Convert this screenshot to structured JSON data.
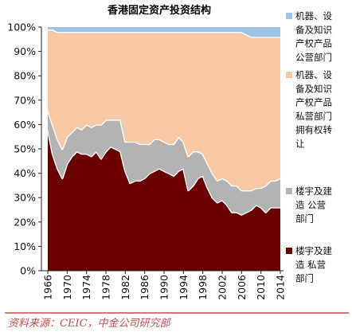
{
  "chart_data": {
    "type": "area",
    "stacked": true,
    "title": "香港固定资产投资结构",
    "x": [
      1966,
      1967,
      1968,
      1969,
      1970,
      1971,
      1972,
      1973,
      1974,
      1975,
      1976,
      1977,
      1978,
      1979,
      1980,
      1981,
      1982,
      1983,
      1984,
      1985,
      1986,
      1987,
      1988,
      1989,
      1990,
      1991,
      1992,
      1993,
      1994,
      1995,
      1996,
      1997,
      1998,
      1999,
      2000,
      2001,
      2002,
      2003,
      2004,
      2005,
      2006,
      2007,
      2008,
      2009,
      2010,
      2011,
      2012,
      2013,
      2014
    ],
    "x_tick_labels": [
      "1966",
      "1970",
      "1974",
      "1978",
      "1982",
      "1986",
      "1990",
      "1994",
      "1998",
      "2002",
      "2006",
      "2010",
      "2014"
    ],
    "y_tick_labels": [
      "0%",
      "10%",
      "20%",
      "30%",
      "40%",
      "50%",
      "60%",
      "70%",
      "80%",
      "90%",
      "100%"
    ],
    "ylim": [
      0,
      100
    ],
    "series": [
      {
        "name": "楼宇及建造 私营部门",
        "color": "#6b0000",
        "values": [
          58,
          48,
          42,
          38,
          44,
          47,
          49,
          48,
          48,
          47,
          49,
          46,
          49,
          51,
          50,
          49,
          41,
          36,
          37,
          37,
          38,
          40,
          41,
          42,
          41,
          40,
          39,
          41,
          42,
          33,
          35,
          38,
          39,
          34,
          30,
          28,
          29,
          27,
          24,
          24,
          23,
          24,
          25,
          27,
          26,
          24,
          26,
          26,
          26
        ]
      },
      {
        "name": "楼宇及建造 公营部门",
        "color": "#b3b3b3",
        "values": [
          8,
          12,
          12,
          12,
          11,
          10,
          10,
          10,
          12,
          12,
          11,
          14,
          13,
          11,
          12,
          13,
          12,
          17,
          16,
          15,
          14,
          12,
          13,
          12,
          12,
          12,
          13,
          14,
          11,
          14,
          14,
          11,
          9,
          10,
          10,
          9,
          9,
          10,
          11,
          11,
          10,
          9,
          8,
          7,
          8,
          11,
          11,
          11,
          12
        ]
      },
      {
        "name": "机器、设备及知识产权产品私营部门拥有权转让",
        "color": "#f7c8a4",
        "values": [
          33,
          39,
          44,
          48,
          43,
          41,
          39,
          40,
          38,
          39,
          38,
          38,
          36,
          36,
          36,
          36,
          45,
          45,
          45,
          46,
          46,
          46,
          44,
          44,
          45,
          46,
          46,
          43,
          45,
          51,
          49,
          49,
          50,
          54,
          58,
          61,
          60,
          61,
          63,
          63,
          65,
          64,
          63,
          62,
          62,
          61,
          59,
          59,
          58
        ]
      },
      {
        "name": "机器、设备及知识产权产品公营部门",
        "color": "#9dc3e6",
        "values": [
          1,
          1,
          2,
          2,
          2,
          2,
          2,
          2,
          2,
          2,
          2,
          2,
          2,
          2,
          2,
          2,
          2,
          2,
          2,
          2,
          2,
          2,
          2,
          2,
          2,
          2,
          2,
          2,
          2,
          2,
          2,
          2,
          2,
          2,
          2,
          2,
          2,
          2,
          2,
          2,
          2,
          3,
          4,
          4,
          4,
          4,
          4,
          4,
          4
        ]
      }
    ],
    "legend": {
      "placement": "right",
      "entries": [
        {
          "lines": [
            "机器、设",
            "备及知识",
            "产权产品",
            "公营部门"
          ]
        },
        {
          "lines": [
            "机器、设",
            "备及知识",
            "产权产品",
            "私营部门",
            "拥有权转",
            "让"
          ]
        },
        {
          "lines": [
            "楼宇及建",
            "造 公营",
            "部门"
          ]
        },
        {
          "lines": [
            "楼宇及建",
            "造 私营",
            "部门"
          ]
        }
      ]
    },
    "gap_color": "#ffffff",
    "gridlines": false,
    "source": "资料来源：CEIC，中金公司研究部"
  }
}
